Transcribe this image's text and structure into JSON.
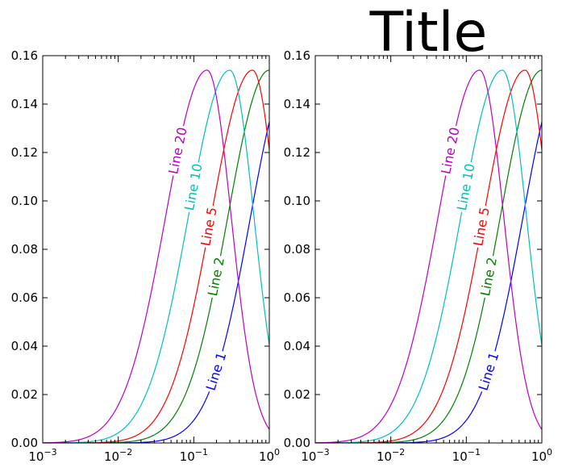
{
  "chart_data": [
    {
      "type": "line",
      "title": "",
      "xlabel": "",
      "ylabel": "",
      "xscale": "log",
      "xlim": [
        0.001,
        1
      ],
      "ylim": [
        0,
        0.16
      ],
      "xtick_labels": [
        {
          "value": 0.001,
          "base": "10",
          "exp": "−3"
        },
        {
          "value": 0.01,
          "base": "10",
          "exp": "−2"
        },
        {
          "value": 0.1,
          "base": "10",
          "exp": "−1"
        },
        {
          "value": 1,
          "base": "10",
          "exp": "0"
        }
      ],
      "ytick_labels": [
        "0.00",
        "0.02",
        "0.04",
        "0.06",
        "0.08",
        "0.10",
        "0.12",
        "0.14",
        "0.16"
      ],
      "ytick_values": [
        0,
        0.02,
        0.04,
        0.06,
        0.08,
        0.1,
        0.12,
        0.14,
        0.16
      ],
      "grid": false,
      "series": [
        {
          "name": "Line 1",
          "color": "#0000ff",
          "peak": 2.0,
          "label_at": 0.2
        },
        {
          "name": "Line 2",
          "color": "#008000",
          "peak": 1.0,
          "label_at": 0.2
        },
        {
          "name": "Line 5",
          "color": "#ff0000",
          "peak": 0.6,
          "label_at": 0.16
        },
        {
          "name": "Line 10",
          "color": "#00bfbf",
          "peak": 0.3,
          "label_at": 0.1
        },
        {
          "name": "Line 20",
          "color": "#bf00bf",
          "peak": 0.15,
          "label_at": 0.062
        }
      ],
      "inline_labels": true
    },
    {
      "type": "line",
      "title": "Title",
      "xlabel": "",
      "ylabel": "",
      "xscale": "log",
      "xlim": [
        0.001,
        1
      ],
      "ylim": [
        0,
        0.16
      ],
      "xtick_labels": [
        {
          "value": 0.001,
          "base": "10",
          "exp": "−3"
        },
        {
          "value": 0.01,
          "base": "10",
          "exp": "−2"
        },
        {
          "value": 0.1,
          "base": "10",
          "exp": "−1"
        },
        {
          "value": 1,
          "base": "10",
          "exp": "0"
        }
      ],
      "ytick_labels": [
        "0.00",
        "0.02",
        "0.04",
        "0.06",
        "0.08",
        "0.10",
        "0.12",
        "0.14",
        "0.16"
      ],
      "ytick_values": [
        0,
        0.02,
        0.04,
        0.06,
        0.08,
        0.1,
        0.12,
        0.14,
        0.16
      ],
      "grid": false,
      "series": [
        {
          "name": "Line 1",
          "color": "#0000ff",
          "peak": 2.0,
          "label_at": 0.2
        },
        {
          "name": "Line 2",
          "color": "#008000",
          "peak": 1.0,
          "label_at": 0.2
        },
        {
          "name": "Line 5",
          "color": "#ff0000",
          "peak": 0.6,
          "label_at": 0.16
        },
        {
          "name": "Line 10",
          "color": "#00bfbf",
          "peak": 0.3,
          "label_at": 0.1
        },
        {
          "name": "Line 20",
          "color": "#bf00bf",
          "peak": 0.15,
          "label_at": 0.062
        }
      ],
      "inline_labels": true
    }
  ]
}
